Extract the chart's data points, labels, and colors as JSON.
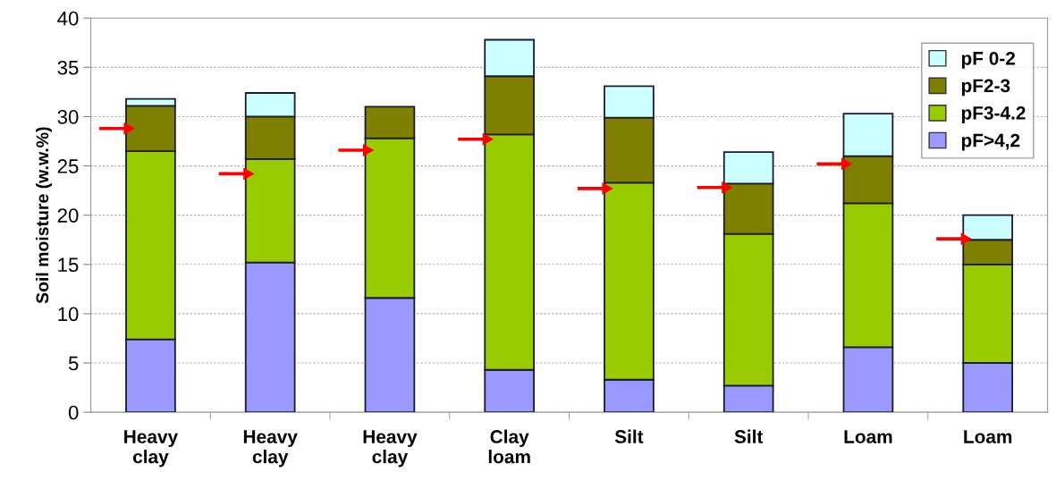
{
  "chart_data": {
    "type": "bar",
    "stacked": true,
    "ylabel": "Soil moisture (w.w.%)",
    "categories": [
      "Heavy\nclay",
      "Heavy\nclay",
      "Heavy\nclay",
      "Clay\nloam",
      "Silt",
      "Silt",
      "Loam",
      "Loam"
    ],
    "series": [
      {
        "name": "pF>4,2",
        "color": "#9999ff",
        "values": [
          7.4,
          15.2,
          11.6,
          4.3,
          3.3,
          2.7,
          6.6,
          5.0
        ]
      },
      {
        "name": "pF3-4.2",
        "color": "#99cc00",
        "values": [
          19.1,
          10.5,
          16.2,
          23.9,
          20.0,
          15.4,
          14.6,
          10.0
        ]
      },
      {
        "name": "pF2-3",
        "color": "#808000",
        "values": [
          4.6,
          4.3,
          3.2,
          5.9,
          6.6,
          5.1,
          4.8,
          2.5
        ]
      },
      {
        "name": "pF 0-2",
        "color": "#ccffff",
        "values": [
          0.7,
          2.4,
          null,
          3.7,
          3.2,
          3.2,
          4.3,
          2.5
        ]
      },
      {
        "type": "scatter",
        "color": "#ff0000",
        "values": [
          28.8,
          24.2,
          26.6,
          27.7,
          22.7,
          22.8,
          25.2,
          17.6
        ]
      }
    ],
    "ylim": [
      0,
      40
    ],
    "yticks": [
      0,
      5,
      10,
      15,
      20,
      25,
      30,
      35,
      40
    ],
    "grid": "y",
    "legend": "top right"
  }
}
